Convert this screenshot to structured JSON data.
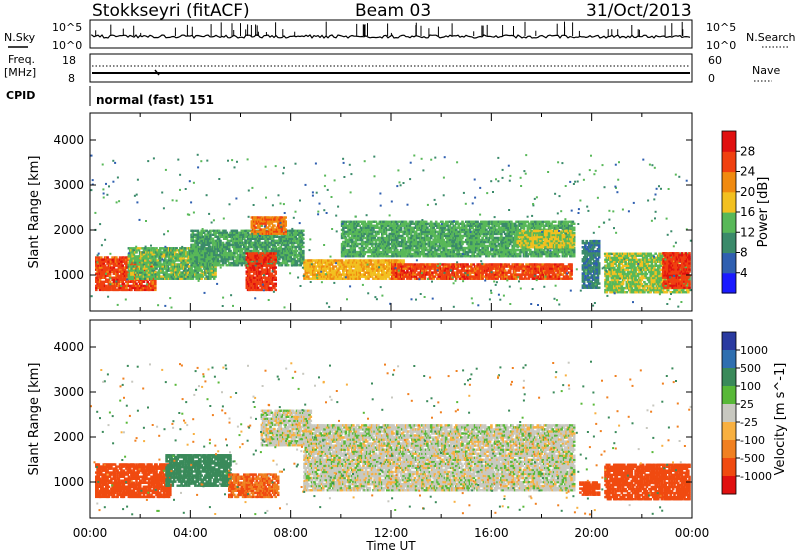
{
  "header": {
    "station": "Stokkseyri (fitACF)",
    "beam": "Beam 03",
    "date": "31/Oct/2013"
  },
  "strip_labels": {
    "nsky": "N.Sky",
    "nsky_top": "10^5",
    "nsky_bottom": "10^0",
    "nsearch": "N.Search",
    "nsearch_top": "10^5",
    "nsearch_bottom": "10^0",
    "freq_line1": "Freq.",
    "freq_line2": "[MHz]",
    "freq_top": "18",
    "freq_bottom": "8",
    "nave": "Nave",
    "nave_top": "60",
    "nave_bottom": "0",
    "cpid": "CPID",
    "cpid_value": "normal (fast) 151"
  },
  "chart_data": [
    {
      "type": "heatmap",
      "title": "",
      "ylabel": "Slant Range [km]",
      "ylim": [
        200,
        4600
      ],
      "yticks": [
        "1000",
        "2000",
        "3000",
        "4000"
      ],
      "xlim": [
        0,
        24
      ],
      "colorbar": {
        "label": "Power [dB]",
        "ticks": [
          "4",
          "8",
          "12",
          "16",
          "20",
          "24",
          "28"
        ],
        "range": [
          0,
          32
        ],
        "colors": [
          "#1a1aff",
          "#2f5fb0",
          "#3a8a6a",
          "#58b858",
          "#f2c020",
          "#f08a10",
          "#f04010",
          "#e01010"
        ]
      },
      "echo_bands": [
        {
          "t0": 0.2,
          "t1": 2.6,
          "r0": 650,
          "r1": 1400,
          "value": 26
        },
        {
          "t0": 1.5,
          "t1": 5.0,
          "r0": 900,
          "r1": 1600,
          "value": 14
        },
        {
          "t0": 4.0,
          "t1": 8.5,
          "r0": 1200,
          "r1": 2000,
          "value": 12
        },
        {
          "t0": 6.2,
          "t1": 7.4,
          "r0": 650,
          "r1": 1500,
          "value": 27
        },
        {
          "t0": 6.4,
          "t1": 7.8,
          "r0": 1900,
          "r1": 2300,
          "value": 23
        },
        {
          "t0": 8.5,
          "t1": 12.5,
          "r0": 900,
          "r1": 1350,
          "value": 19
        },
        {
          "t0": 12.0,
          "t1": 19.2,
          "r0": 900,
          "r1": 1250,
          "value": 26
        },
        {
          "t0": 10.0,
          "t1": 19.3,
          "r0": 1400,
          "r1": 2200,
          "value": 13
        },
        {
          "t0": 17.0,
          "t1": 19.3,
          "r0": 1600,
          "r1": 2000,
          "value": 17
        },
        {
          "t0": 19.6,
          "t1": 20.3,
          "r0": 700,
          "r1": 1800,
          "value": 9
        },
        {
          "t0": 20.5,
          "t1": 23.9,
          "r0": 600,
          "r1": 1500,
          "value": 15
        },
        {
          "t0": 22.8,
          "t1": 23.9,
          "r0": 700,
          "r1": 1500,
          "value": 27
        }
      ]
    },
    {
      "type": "heatmap",
      "title": "",
      "ylabel": "Slant Range [km]",
      "ylim": [
        200,
        4600
      ],
      "yticks": [
        "1000",
        "2000",
        "3000",
        "4000"
      ],
      "xlim": [
        0,
        24
      ],
      "xticks": [
        "00:00",
        "04:00",
        "08:00",
        "12:00",
        "16:00",
        "20:00",
        "00:00"
      ],
      "xlabel": "Time UT",
      "colorbar": {
        "label": "Velocity [m s^-1]",
        "ticks": [
          "1000",
          "500",
          "100",
          "25",
          "-25",
          "-100",
          "-500",
          "-1000"
        ],
        "colors": [
          "#2a3aa0",
          "#2f6fb0",
          "#3a8a5a",
          "#58b838",
          "#c8c8c0",
          "#f8b040",
          "#f08020",
          "#f04a10",
          "#e01010"
        ]
      },
      "echo_bands": [
        {
          "t0": 0.2,
          "t1": 3.2,
          "r0": 650,
          "r1": 1400,
          "value": -500
        },
        {
          "t0": 3.0,
          "t1": 5.6,
          "r0": 900,
          "r1": 1600,
          "value": 100
        },
        {
          "t0": 5.5,
          "t1": 7.5,
          "r0": 650,
          "r1": 1200,
          "value": -300
        },
        {
          "t0": 6.8,
          "t1": 8.8,
          "r0": 1800,
          "r1": 2600,
          "value": 0
        },
        {
          "t0": 8.5,
          "t1": 19.3,
          "r0": 800,
          "r1": 2300,
          "value": 0
        },
        {
          "t0": 19.5,
          "t1": 20.3,
          "r0": 700,
          "r1": 1000,
          "value": -600
        },
        {
          "t0": 20.5,
          "t1": 23.9,
          "r0": 600,
          "r1": 1400,
          "value": -400
        }
      ]
    }
  ]
}
